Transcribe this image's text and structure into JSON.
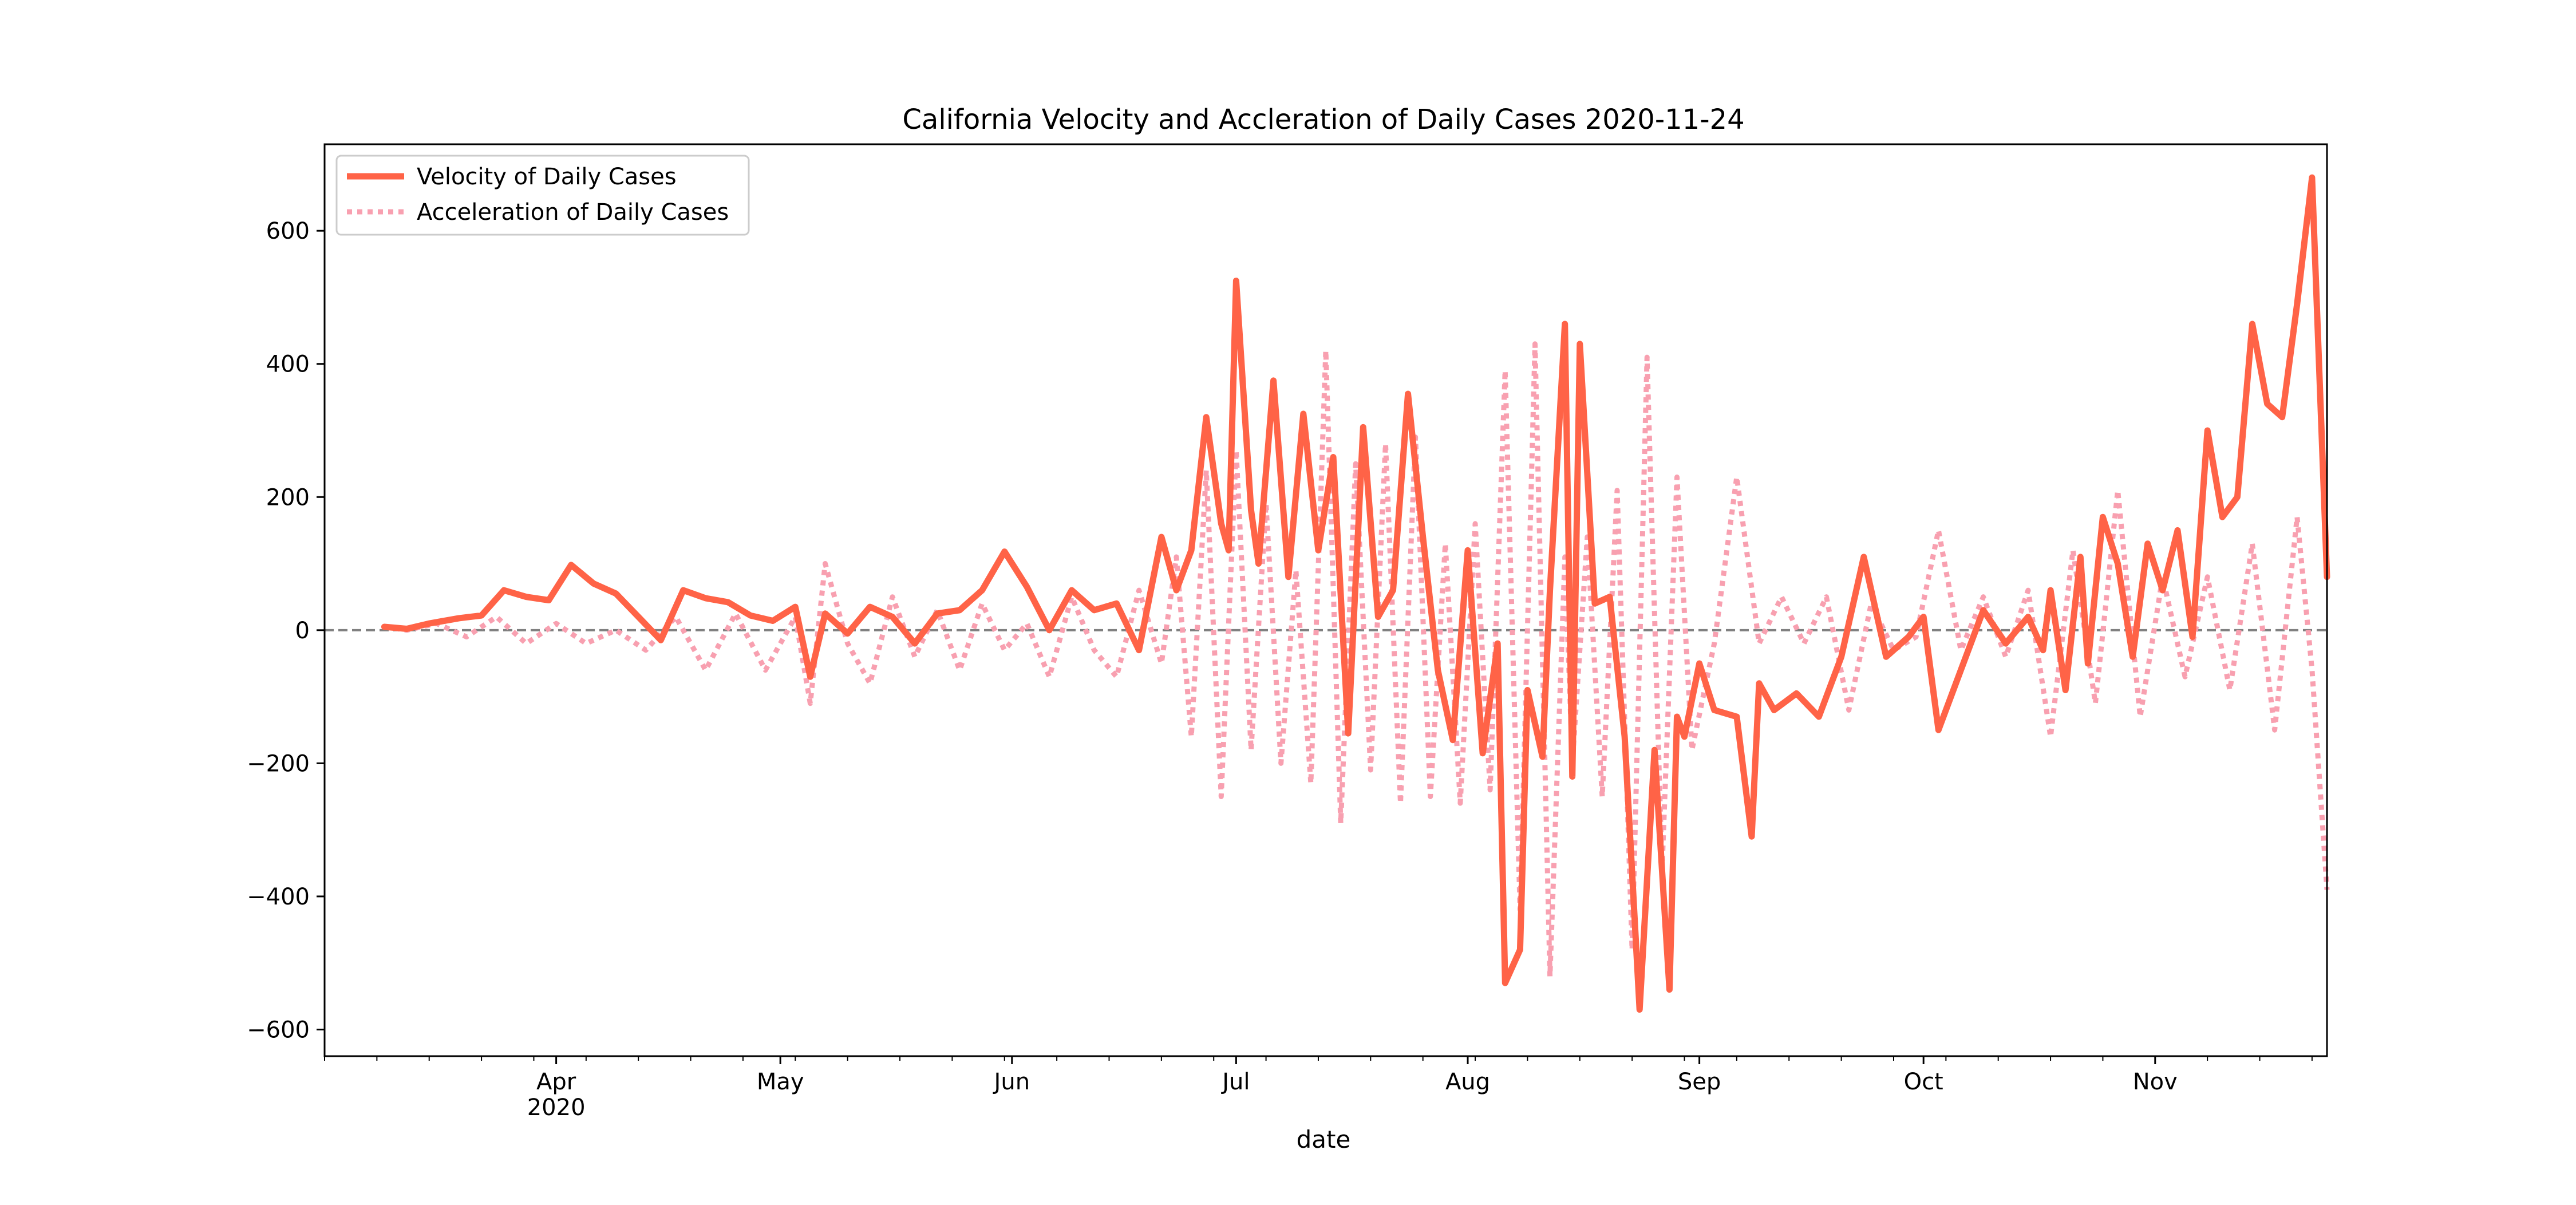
{
  "chart_data": {
    "type": "line",
    "title": "California Velocity and Accleration of Daily Cases 2020-11-24",
    "xlabel": "date",
    "ylabel": "",
    "xlim": [
      "2020-03-01",
      "2020-11-24"
    ],
    "ylim": [
      -640,
      730
    ],
    "yticks": [
      -600,
      -400,
      -200,
      0,
      200,
      400,
      600
    ],
    "ytick_labels": [
      "−600",
      "−400",
      "−200",
      "0",
      "200",
      "400",
      "600"
    ],
    "xticks": [
      {
        "date": "2020-04-01",
        "label": "Apr",
        "sublabel": "2020"
      },
      {
        "date": "2020-05-01",
        "label": "May",
        "sublabel": ""
      },
      {
        "date": "2020-06-01",
        "label": "Jun",
        "sublabel": ""
      },
      {
        "date": "2020-07-01",
        "label": "Jul",
        "sublabel": ""
      },
      {
        "date": "2020-08-01",
        "label": "Aug",
        "sublabel": ""
      },
      {
        "date": "2020-09-01",
        "label": "Sep",
        "sublabel": ""
      },
      {
        "date": "2020-10-01",
        "label": "Oct",
        "sublabel": ""
      },
      {
        "date": "2020-11-01",
        "label": "Nov",
        "sublabel": ""
      }
    ],
    "zero_line": true,
    "grid": false,
    "legend_position": "top-left",
    "series": [
      {
        "name": "Velocity of Daily Cases",
        "color": "#ff6347",
        "style": "solid",
        "x": [
          "2020-03-09",
          "2020-03-12",
          "2020-03-15",
          "2020-03-19",
          "2020-03-22",
          "2020-03-25",
          "2020-03-28",
          "2020-03-31",
          "2020-04-03",
          "2020-04-06",
          "2020-04-09",
          "2020-04-12",
          "2020-04-15",
          "2020-04-18",
          "2020-04-21",
          "2020-04-24",
          "2020-04-27",
          "2020-04-30",
          "2020-05-03",
          "2020-05-05",
          "2020-05-07",
          "2020-05-10",
          "2020-05-13",
          "2020-05-16",
          "2020-05-19",
          "2020-05-22",
          "2020-05-25",
          "2020-05-28",
          "2020-05-31",
          "2020-06-03",
          "2020-06-06",
          "2020-06-09",
          "2020-06-12",
          "2020-06-15",
          "2020-06-18",
          "2020-06-21",
          "2020-06-23",
          "2020-06-25",
          "2020-06-27",
          "2020-06-29",
          "2020-06-30",
          "2020-07-01",
          "2020-07-03",
          "2020-07-04",
          "2020-07-06",
          "2020-07-08",
          "2020-07-10",
          "2020-07-12",
          "2020-07-14",
          "2020-07-16",
          "2020-07-18",
          "2020-07-20",
          "2020-07-22",
          "2020-07-24",
          "2020-07-26",
          "2020-07-28",
          "2020-07-30",
          "2020-08-01",
          "2020-08-03",
          "2020-08-05",
          "2020-08-06",
          "2020-08-08",
          "2020-08-09",
          "2020-08-11",
          "2020-08-12",
          "2020-08-14",
          "2020-08-15",
          "2020-08-16",
          "2020-08-18",
          "2020-08-20",
          "2020-08-22",
          "2020-08-24",
          "2020-08-26",
          "2020-08-28",
          "2020-08-29",
          "2020-08-30",
          "2020-09-01",
          "2020-09-03",
          "2020-09-06",
          "2020-09-08",
          "2020-09-09",
          "2020-09-11",
          "2020-09-14",
          "2020-09-17",
          "2020-09-20",
          "2020-09-23",
          "2020-09-26",
          "2020-09-29",
          "2020-10-01",
          "2020-10-03",
          "2020-10-06",
          "2020-10-09",
          "2020-10-12",
          "2020-10-15",
          "2020-10-17",
          "2020-10-18",
          "2020-10-20",
          "2020-10-22",
          "2020-10-23",
          "2020-10-25",
          "2020-10-27",
          "2020-10-29",
          "2020-10-31",
          "2020-11-02",
          "2020-11-04",
          "2020-11-06",
          "2020-11-08",
          "2020-11-10",
          "2020-11-12",
          "2020-11-14",
          "2020-11-16",
          "2020-11-18",
          "2020-11-20",
          "2020-11-22",
          "2020-11-24"
        ],
        "y": [
          5,
          2,
          10,
          18,
          22,
          60,
          50,
          45,
          98,
          70,
          55,
          20,
          -15,
          60,
          48,
          42,
          22,
          14,
          35,
          -70,
          25,
          -5,
          35,
          20,
          -20,
          25,
          30,
          60,
          118,
          65,
          0,
          60,
          30,
          40,
          -30,
          140,
          60,
          120,
          320,
          160,
          120,
          525,
          180,
          100,
          375,
          80,
          325,
          120,
          260,
          -155,
          305,
          20,
          60,
          355,
          140,
          -60,
          -165,
          120,
          -185,
          -20,
          -530,
          -480,
          -90,
          -190,
          60,
          460,
          -220,
          430,
          40,
          50,
          -160,
          -570,
          -180,
          -540,
          -130,
          -160,
          -50,
          -120,
          -130,
          -310,
          -80,
          -120,
          -95,
          -130,
          -40,
          110,
          -40,
          -10,
          20,
          -150,
          -60,
          30,
          -20,
          20,
          -30,
          60,
          -90,
          110,
          -50,
          170,
          100,
          -40,
          130,
          60,
          150,
          -10,
          300,
          170,
          200,
          460,
          340,
          320,
          490,
          680,
          80
        ]
      },
      {
        "name": "Acceleration of Daily Cases",
        "color": "#f8a0b0",
        "style": "dotted",
        "x": [
          "2020-03-09",
          "2020-03-12",
          "2020-03-16",
          "2020-03-20",
          "2020-03-24",
          "2020-03-28",
          "2020-04-01",
          "2020-04-05",
          "2020-04-09",
          "2020-04-13",
          "2020-04-17",
          "2020-04-21",
          "2020-04-25",
          "2020-04-29",
          "2020-05-03",
          "2020-05-05",
          "2020-05-07",
          "2020-05-10",
          "2020-05-13",
          "2020-05-16",
          "2020-05-19",
          "2020-05-22",
          "2020-05-25",
          "2020-05-28",
          "2020-05-31",
          "2020-06-03",
          "2020-06-06",
          "2020-06-09",
          "2020-06-12",
          "2020-06-15",
          "2020-06-18",
          "2020-06-21",
          "2020-06-23",
          "2020-06-25",
          "2020-06-27",
          "2020-06-29",
          "2020-07-01",
          "2020-07-03",
          "2020-07-05",
          "2020-07-07",
          "2020-07-09",
          "2020-07-11",
          "2020-07-13",
          "2020-07-15",
          "2020-07-17",
          "2020-07-19",
          "2020-07-21",
          "2020-07-23",
          "2020-07-25",
          "2020-07-27",
          "2020-07-29",
          "2020-07-31",
          "2020-08-02",
          "2020-08-04",
          "2020-08-06",
          "2020-08-08",
          "2020-08-10",
          "2020-08-12",
          "2020-08-14",
          "2020-08-15",
          "2020-08-17",
          "2020-08-19",
          "2020-08-21",
          "2020-08-23",
          "2020-08-25",
          "2020-08-27",
          "2020-08-29",
          "2020-08-31",
          "2020-09-03",
          "2020-09-06",
          "2020-09-09",
          "2020-09-12",
          "2020-09-15",
          "2020-09-18",
          "2020-09-21",
          "2020-09-24",
          "2020-09-27",
          "2020-09-30",
          "2020-10-03",
          "2020-10-06",
          "2020-10-09",
          "2020-10-12",
          "2020-10-15",
          "2020-10-18",
          "2020-10-21",
          "2020-10-24",
          "2020-10-27",
          "2020-10-30",
          "2020-11-02",
          "2020-11-05",
          "2020-11-08",
          "2020-11-11",
          "2020-11-14",
          "2020-11-17",
          "2020-11-20",
          "2020-11-22",
          "2020-11-24"
        ],
        "y": [
          5,
          0,
          10,
          -10,
          20,
          -20,
          10,
          -20,
          0,
          -30,
          20,
          -60,
          25,
          -60,
          20,
          -110,
          100,
          -20,
          -80,
          50,
          -40,
          30,
          -60,
          40,
          -30,
          10,
          -70,
          50,
          -30,
          -70,
          60,
          -50,
          110,
          -160,
          240,
          -250,
          270,
          -180,
          190,
          -200,
          90,
          -230,
          420,
          -290,
          250,
          -210,
          280,
          -260,
          290,
          -250,
          130,
          -260,
          160,
          -240,
          390,
          -420,
          430,
          -520,
          110,
          -200,
          140,
          -250,
          210,
          -480,
          410,
          -360,
          230,
          -180,
          -20,
          230,
          -20,
          50,
          -20,
          50,
          -120,
          40,
          -30,
          -10,
          150,
          -30,
          50,
          -40,
          60,
          -160,
          120,
          -110,
          210,
          -130,
          80,
          -70,
          80,
          -90,
          130,
          -150,
          170,
          -60,
          -390
        ]
      }
    ]
  }
}
